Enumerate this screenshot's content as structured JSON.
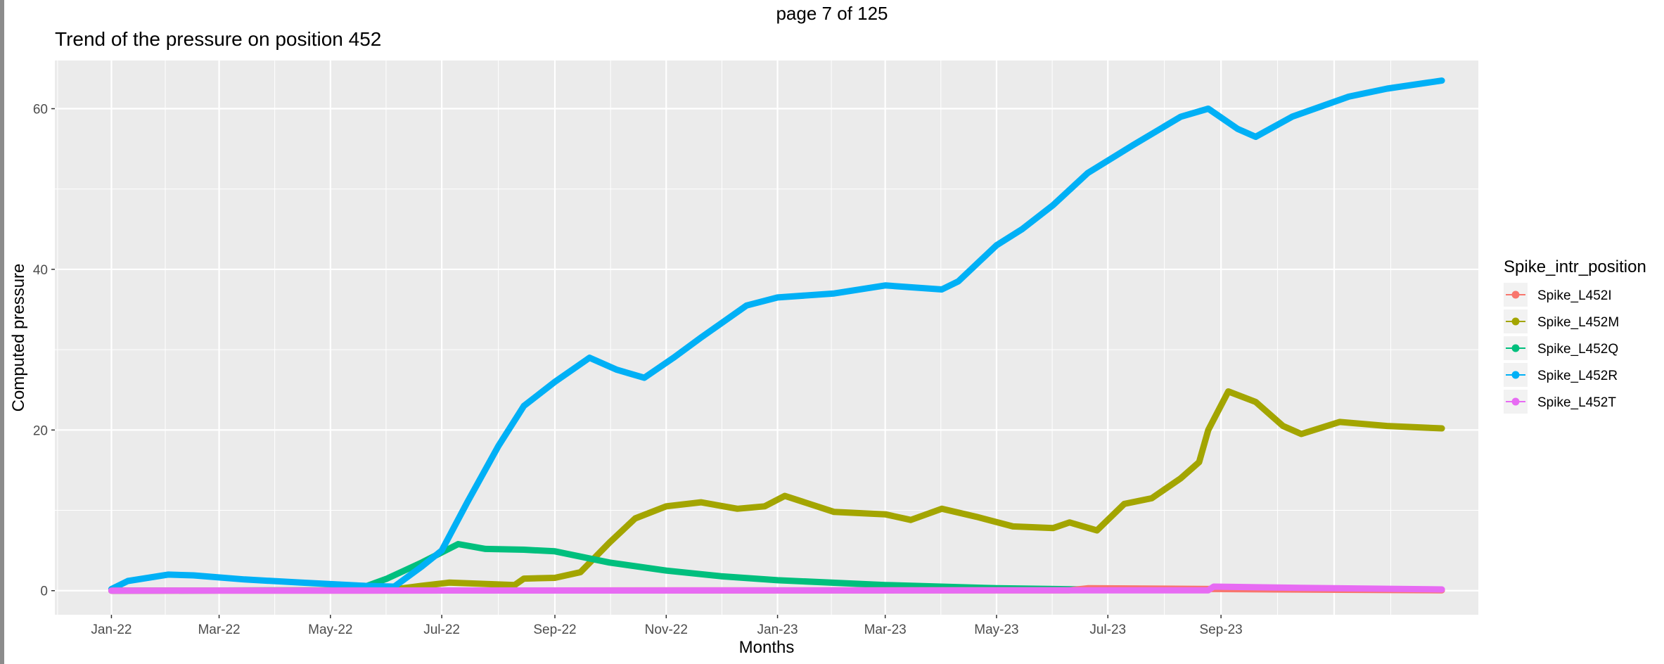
{
  "page_label": "page 7 of 125",
  "chart_data": {
    "type": "line",
    "title": "Trend of the pressure on position 452",
    "xlabel": "Months",
    "ylabel": "Computed pressure",
    "x_ticks": [
      "Jan-22",
      "Mar-22",
      "May-22",
      "Jul-22",
      "Sep-22",
      "Nov-22",
      "Jan-23",
      "Mar-23",
      "May-23",
      "Jul-23",
      "Sep-23"
    ],
    "y_ticks": [
      0,
      20,
      40,
      60
    ],
    "xlim": [
      "2021-12-01",
      "2024-01-20"
    ],
    "ylim": [
      -3,
      66
    ],
    "grid": true,
    "legend": {
      "title": "Spike_intr_position",
      "position": "right"
    },
    "series": [
      {
        "name": "Spike_L452I",
        "color": "#F8766D",
        "points": [
          [
            "2022-01-01",
            0
          ],
          [
            "2023-06-10",
            0.05
          ],
          [
            "2023-06-20",
            0.3
          ],
          [
            "2023-08-01",
            0.25
          ],
          [
            "2023-10-01",
            0.15
          ],
          [
            "2023-12-31",
            0.05
          ]
        ]
      },
      {
        "name": "Spike_L452M",
        "color": "#A3A500",
        "points": [
          [
            "2022-01-01",
            0
          ],
          [
            "2022-06-01",
            0.05
          ],
          [
            "2022-06-20",
            0.6
          ],
          [
            "2022-07-05",
            1
          ],
          [
            "2022-08-10",
            0.7
          ],
          [
            "2022-08-15",
            1.5
          ],
          [
            "2022-09-01",
            1.6
          ],
          [
            "2022-09-15",
            2.3
          ],
          [
            "2022-10-01",
            6
          ],
          [
            "2022-10-15",
            9
          ],
          [
            "2022-11-01",
            10.5
          ],
          [
            "2022-11-20",
            11
          ],
          [
            "2022-12-10",
            10.2
          ],
          [
            "2022-12-25",
            10.5
          ],
          [
            "2023-01-05",
            11.8
          ],
          [
            "2023-02-01",
            9.8
          ],
          [
            "2023-03-01",
            9.5
          ],
          [
            "2023-03-15",
            8.8
          ],
          [
            "2023-04-01",
            10.2
          ],
          [
            "2023-04-20",
            9.2
          ],
          [
            "2023-05-10",
            8
          ],
          [
            "2023-06-01",
            7.8
          ],
          [
            "2023-06-10",
            8.5
          ],
          [
            "2023-06-25",
            7.5
          ],
          [
            "2023-07-10",
            10.8
          ],
          [
            "2023-07-25",
            11.5
          ],
          [
            "2023-08-10",
            14
          ],
          [
            "2023-08-20",
            16
          ],
          [
            "2023-08-25",
            20
          ],
          [
            "2023-09-05",
            24.8
          ],
          [
            "2023-09-20",
            23.5
          ],
          [
            "2023-10-05",
            20.5
          ],
          [
            "2023-10-15",
            19.5
          ],
          [
            "2023-11-05",
            21
          ],
          [
            "2023-12-01",
            20.5
          ],
          [
            "2023-12-31",
            20.2
          ]
        ]
      },
      {
        "name": "Spike_L452Q",
        "color": "#00BF7D",
        "points": [
          [
            "2022-01-01",
            0
          ],
          [
            "2022-05-15",
            0.05
          ],
          [
            "2022-05-20",
            0.5
          ],
          [
            "2022-06-01",
            1.5
          ],
          [
            "2022-06-20",
            3.5
          ],
          [
            "2022-07-10",
            5.8
          ],
          [
            "2022-07-25",
            5.2
          ],
          [
            "2022-08-15",
            5.1
          ],
          [
            "2022-09-01",
            4.9
          ],
          [
            "2022-10-01",
            3.5
          ],
          [
            "2022-11-01",
            2.5
          ],
          [
            "2022-12-01",
            1.8
          ],
          [
            "2023-01-01",
            1.3
          ],
          [
            "2023-03-01",
            0.7
          ],
          [
            "2023-05-01",
            0.3
          ],
          [
            "2023-06-20",
            0.15
          ]
        ]
      },
      {
        "name": "Spike_L452R",
        "color": "#00B0F6",
        "points": [
          [
            "2022-01-01",
            0.2
          ],
          [
            "2022-01-10",
            1.2
          ],
          [
            "2022-02-01",
            2
          ],
          [
            "2022-02-15",
            1.9
          ],
          [
            "2022-03-15",
            1.4
          ],
          [
            "2022-04-15",
            1
          ],
          [
            "2022-05-20",
            0.6
          ],
          [
            "2022-06-05",
            0.5
          ],
          [
            "2022-06-20",
            3
          ],
          [
            "2022-07-01",
            5
          ],
          [
            "2022-07-15",
            11
          ],
          [
            "2022-08-01",
            18
          ],
          [
            "2022-08-15",
            23
          ],
          [
            "2022-09-01",
            26
          ],
          [
            "2022-09-20",
            29
          ],
          [
            "2022-10-05",
            27.5
          ],
          [
            "2022-10-20",
            26.5
          ],
          [
            "2022-11-05",
            29
          ],
          [
            "2022-11-20",
            31.5
          ],
          [
            "2022-12-15",
            35.5
          ],
          [
            "2023-01-01",
            36.5
          ],
          [
            "2023-02-01",
            37
          ],
          [
            "2023-03-01",
            38
          ],
          [
            "2023-04-01",
            37.5
          ],
          [
            "2023-04-10",
            38.5
          ],
          [
            "2023-05-01",
            43
          ],
          [
            "2023-05-15",
            45
          ],
          [
            "2023-06-01",
            48
          ],
          [
            "2023-06-20",
            52
          ],
          [
            "2023-07-15",
            55.5
          ],
          [
            "2023-08-10",
            59
          ],
          [
            "2023-08-25",
            60
          ],
          [
            "2023-09-10",
            57.5
          ],
          [
            "2023-09-20",
            56.5
          ],
          [
            "2023-10-10",
            59
          ],
          [
            "2023-11-10",
            61.5
          ],
          [
            "2023-12-01",
            62.5
          ],
          [
            "2023-12-31",
            63.5
          ]
        ]
      },
      {
        "name": "Spike_L452T",
        "color": "#E76BF3",
        "points": [
          [
            "2022-01-01",
            0
          ],
          [
            "2023-08-25",
            0.05
          ],
          [
            "2023-08-28",
            0.5
          ],
          [
            "2023-10-15",
            0.35
          ],
          [
            "2023-12-31",
            0.15
          ]
        ]
      }
    ]
  }
}
